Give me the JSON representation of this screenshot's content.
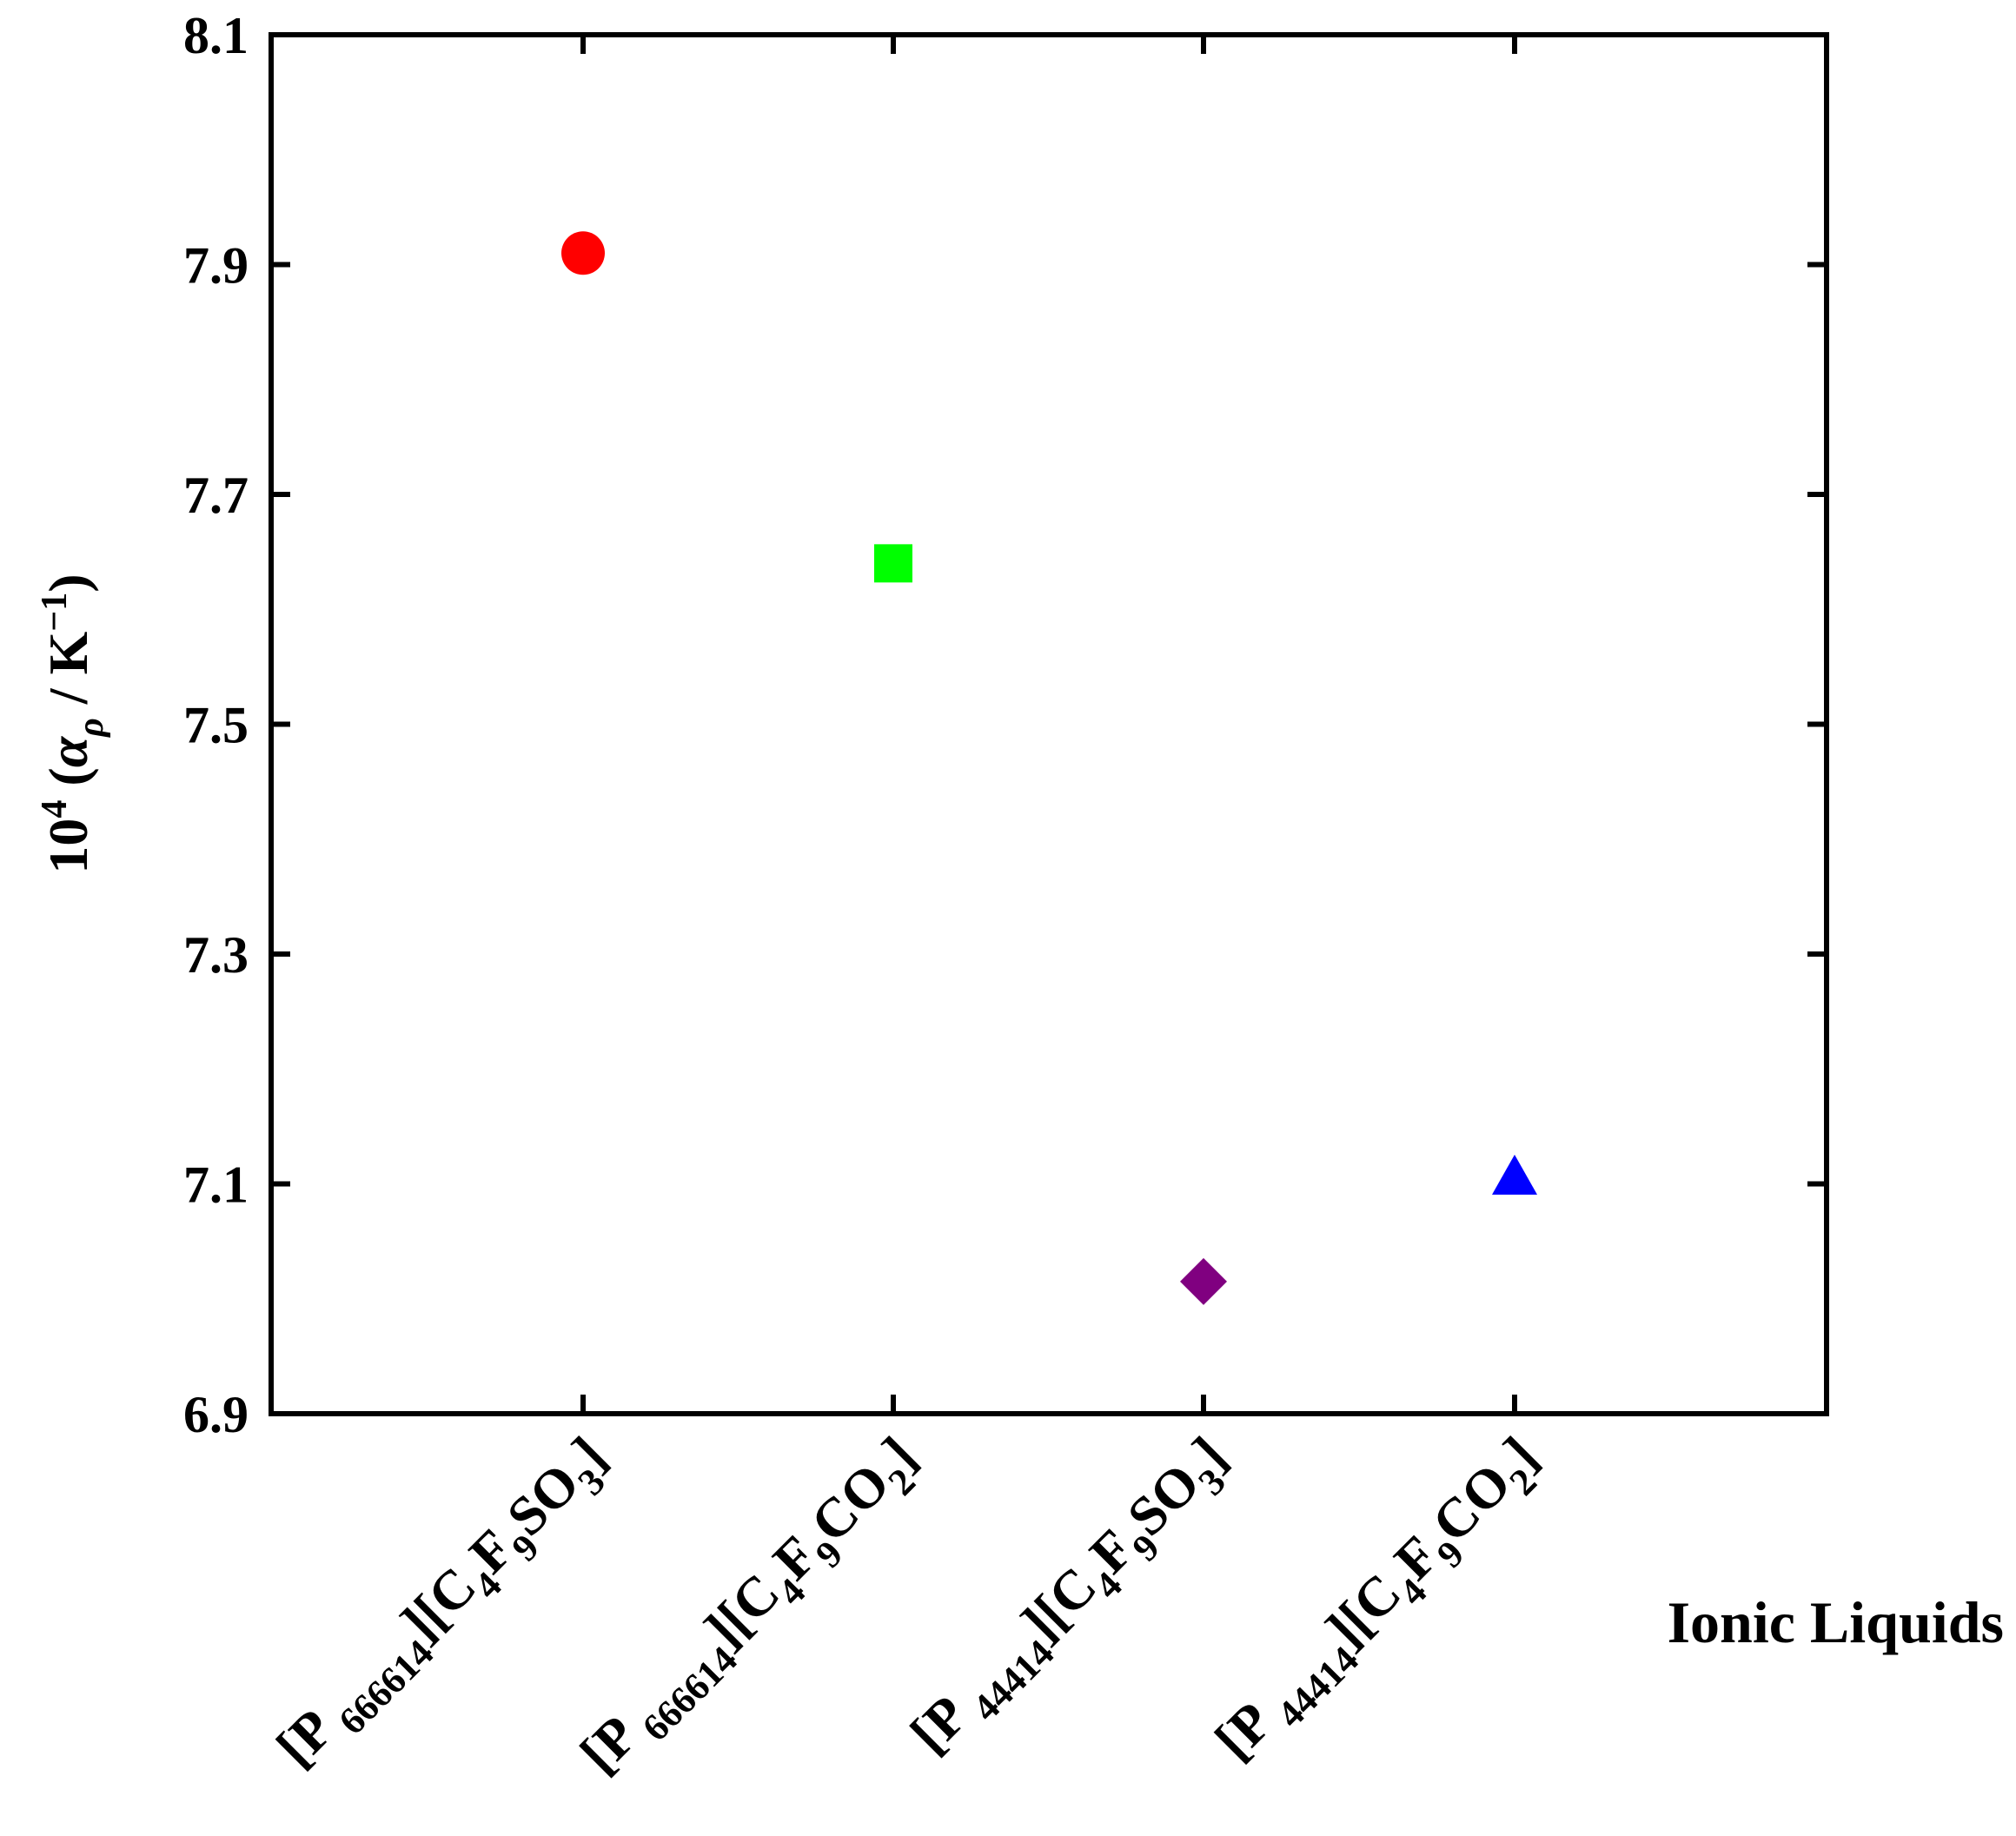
{
  "chart_data": {
    "type": "scatter",
    "title": "",
    "xlabel": "Ionic Liquids",
    "ylabel": {
      "prefix": "10",
      "prefix_sup": "4",
      "open": " (",
      "symbol": "α",
      "symbol_sub": "ρ",
      "unit": " / K",
      "unit_sup": "−1",
      "close": ")"
    },
    "ylim": [
      6.9,
      8.1
    ],
    "yticks": [
      "6.9",
      "7.1",
      "7.3",
      "7.5",
      "7.7",
      "7.9",
      "8.1"
    ],
    "grid": false,
    "categories": [
      {
        "parts": [
          {
            "t": "[P",
            "s": "n"
          },
          {
            "t": " 666614",
            "s": "sub"
          },
          {
            "t": "][C",
            "s": "n"
          },
          {
            "t": "4",
            "s": "sub"
          },
          {
            "t": "F",
            "s": "n"
          },
          {
            "t": "9",
            "s": "sub"
          },
          {
            "t": "SO",
            "s": "n"
          },
          {
            "t": "3",
            "s": "sub"
          },
          {
            "t": "]",
            "s": "n"
          }
        ]
      },
      {
        "parts": [
          {
            "t": "[P",
            "s": "n"
          },
          {
            "t": " 666614",
            "s": "sub"
          },
          {
            "t": "][C",
            "s": "n"
          },
          {
            "t": "4",
            "s": "sub"
          },
          {
            "t": "F",
            "s": "n"
          },
          {
            "t": "9",
            "s": "sub"
          },
          {
            "t": "CO",
            "s": "n"
          },
          {
            "t": "2",
            "s": "sub"
          },
          {
            "t": "]",
            "s": "n"
          }
        ]
      },
      {
        "parts": [
          {
            "t": "[P",
            "s": "n"
          },
          {
            "t": " 44414",
            "s": "sub"
          },
          {
            "t": "][C",
            "s": "n"
          },
          {
            "t": "4",
            "s": "sub"
          },
          {
            "t": "F",
            "s": "n"
          },
          {
            "t": "9",
            "s": "sub"
          },
          {
            "t": "SO",
            "s": "n"
          },
          {
            "t": "3",
            "s": "sub"
          },
          {
            "t": "]",
            "s": "n"
          }
        ]
      },
      {
        "parts": [
          {
            "t": "[P",
            "s": "n"
          },
          {
            "t": " 44414",
            "s": "sub"
          },
          {
            "t": "][C",
            "s": "n"
          },
          {
            "t": "4",
            "s": "sub"
          },
          {
            "t": "F",
            "s": "n"
          },
          {
            "t": "9",
            "s": "sub"
          },
          {
            "t": "CO",
            "s": "n"
          },
          {
            "t": "2",
            "s": "sub"
          },
          {
            "t": "]",
            "s": "n"
          }
        ]
      }
    ],
    "points": [
      {
        "category_index": 0,
        "y": 7.91,
        "marker": "circle",
        "color": "#ff0000"
      },
      {
        "category_index": 1,
        "y": 7.64,
        "marker": "square",
        "color": "#00ff00"
      },
      {
        "category_index": 2,
        "y": 7.015,
        "marker": "diamond",
        "color": "#800080"
      },
      {
        "category_index": 3,
        "y": 7.105,
        "marker": "triangle",
        "color": "#0000ff"
      }
    ]
  }
}
